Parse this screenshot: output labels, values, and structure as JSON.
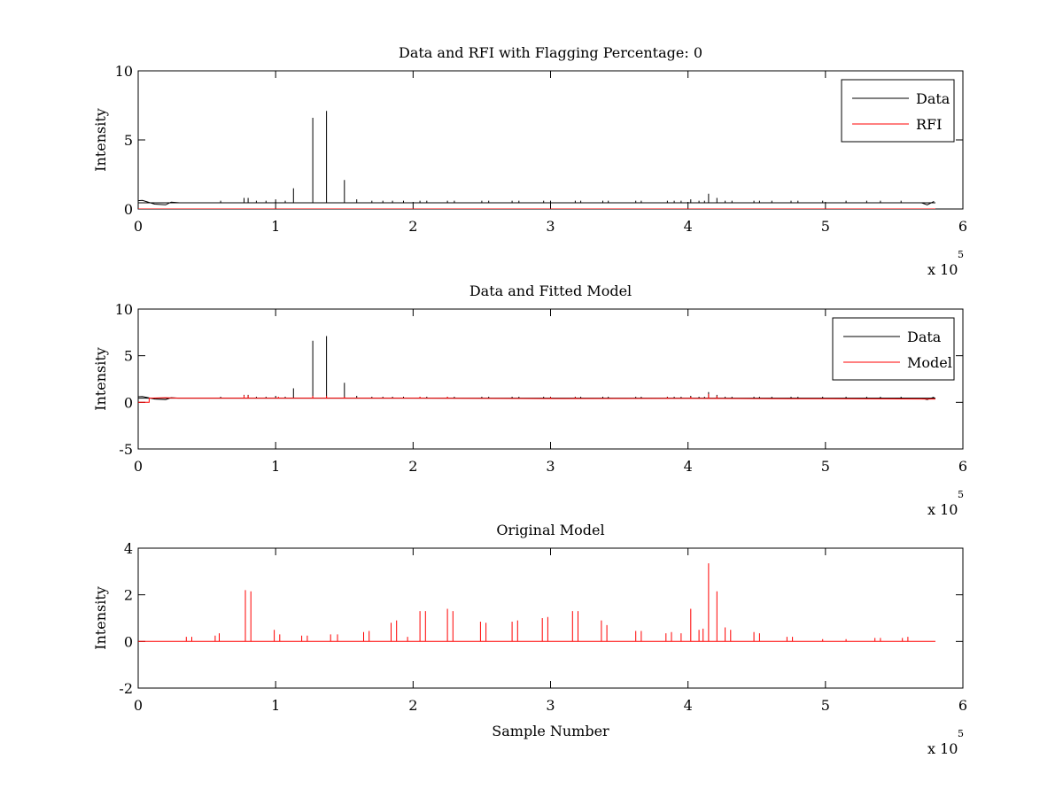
{
  "chart_data": [
    {
      "type": "line",
      "title": "Data and RFI with Flagging Percentage: 0",
      "xlabel": "",
      "ylabel": "Intensity",
      "xlim": [
        0,
        600000
      ],
      "ylim": [
        0,
        10
      ],
      "xticks": [
        0,
        1,
        2,
        3,
        4,
        5,
        6
      ],
      "yticks": [
        0,
        5,
        10
      ],
      "x_multiplier": {
        "base": "x 10",
        "exponent": "5"
      },
      "legend": {
        "position": "top-right",
        "entries": [
          "Data",
          "RFI"
        ]
      },
      "series": [
        {
          "name": "Data",
          "color": "#000000",
          "baseline": 0.45,
          "x_range": [
            0,
            580000
          ],
          "dips": [
            [
              0,
              0.6
            ],
            [
              3000,
              0.62
            ],
            [
              12000,
              0.35
            ],
            [
              20000,
              0.3
            ],
            [
              24000,
              0.5
            ],
            [
              30000,
              0.45
            ],
            [
              570000,
              0.45
            ],
            [
              574000,
              0.3
            ],
            [
              579000,
              0.55
            ]
          ],
          "spikes": [
            [
              60000,
              0.6
            ],
            [
              77000,
              0.8
            ],
            [
              80000,
              0.8
            ],
            [
              86000,
              0.6
            ],
            [
              93000,
              0.6
            ],
            [
              100000,
              0.7
            ],
            [
              107000,
              0.6
            ],
            [
              113000,
              1.5
            ],
            [
              127000,
              6.6
            ],
            [
              137000,
              7.1
            ],
            [
              150000,
              2.1
            ],
            [
              159000,
              0.7
            ],
            [
              170000,
              0.6
            ],
            [
              178000,
              0.6
            ],
            [
              185000,
              0.6
            ],
            [
              193000,
              0.6
            ],
            [
              205000,
              0.6
            ],
            [
              210000,
              0.6
            ],
            [
              225000,
              0.6
            ],
            [
              230000,
              0.6
            ],
            [
              250000,
              0.6
            ],
            [
              255000,
              0.6
            ],
            [
              272000,
              0.6
            ],
            [
              277000,
              0.6
            ],
            [
              295000,
              0.6
            ],
            [
              300000,
              0.6
            ],
            [
              318000,
              0.6
            ],
            [
              322000,
              0.6
            ],
            [
              338000,
              0.6
            ],
            [
              342000,
              0.6
            ],
            [
              362000,
              0.6
            ],
            [
              366000,
              0.6
            ],
            [
              385000,
              0.6
            ],
            [
              390000,
              0.6
            ],
            [
              395000,
              0.6
            ],
            [
              402000,
              0.7
            ],
            [
              408000,
              0.6
            ],
            [
              412000,
              0.6
            ],
            [
              415000,
              1.1
            ],
            [
              421000,
              0.8
            ],
            [
              427000,
              0.6
            ],
            [
              432000,
              0.6
            ],
            [
              448000,
              0.6
            ],
            [
              452000,
              0.6
            ],
            [
              461000,
              0.6
            ],
            [
              475000,
              0.6
            ],
            [
              480000,
              0.6
            ],
            [
              498000,
              0.6
            ],
            [
              515000,
              0.6
            ],
            [
              530000,
              0.6
            ],
            [
              540000,
              0.6
            ],
            [
              555000,
              0.6
            ]
          ]
        },
        {
          "name": "RFI",
          "color": "#ff0000",
          "values_summary": "all zero"
        }
      ]
    },
    {
      "type": "line",
      "title": "Data and Fitted Model",
      "xlabel": "",
      "ylabel": "Intensity",
      "xlim": [
        0,
        600000
      ],
      "ylim": [
        -5,
        10
      ],
      "xticks": [
        0,
        1,
        2,
        3,
        4,
        5,
        6
      ],
      "yticks": [
        -5,
        0,
        5,
        10
      ],
      "x_multiplier": {
        "base": "x 10",
        "exponent": "5"
      },
      "legend": {
        "position": "top-right",
        "entries": [
          "Data",
          "Model"
        ]
      },
      "series": [
        {
          "name": "Data",
          "color": "#000000",
          "baseline": 0.45,
          "x_range": [
            0,
            580000
          ],
          "dips": [
            [
              0,
              0.6
            ],
            [
              3000,
              0.62
            ],
            [
              12000,
              0.35
            ],
            [
              20000,
              0.3
            ],
            [
              24000,
              0.5
            ],
            [
              30000,
              0.45
            ],
            [
              570000,
              0.45
            ],
            [
              574000,
              0.3
            ],
            [
              579000,
              0.55
            ]
          ],
          "spikes": [
            [
              60000,
              0.6
            ],
            [
              77000,
              0.8
            ],
            [
              80000,
              0.8
            ],
            [
              86000,
              0.6
            ],
            [
              93000,
              0.6
            ],
            [
              100000,
              0.7
            ],
            [
              107000,
              0.6
            ],
            [
              113000,
              1.5
            ],
            [
              127000,
              6.6
            ],
            [
              137000,
              7.1
            ],
            [
              150000,
              2.1
            ],
            [
              159000,
              0.7
            ],
            [
              170000,
              0.6
            ],
            [
              178000,
              0.6
            ],
            [
              185000,
              0.6
            ],
            [
              193000,
              0.6
            ],
            [
              205000,
              0.6
            ],
            [
              210000,
              0.6
            ],
            [
              225000,
              0.6
            ],
            [
              230000,
              0.6
            ],
            [
              250000,
              0.6
            ],
            [
              255000,
              0.6
            ],
            [
              272000,
              0.6
            ],
            [
              277000,
              0.6
            ],
            [
              295000,
              0.6
            ],
            [
              300000,
              0.6
            ],
            [
              318000,
              0.6
            ],
            [
              322000,
              0.6
            ],
            [
              338000,
              0.6
            ],
            [
              342000,
              0.6
            ],
            [
              362000,
              0.6
            ],
            [
              366000,
              0.6
            ],
            [
              385000,
              0.6
            ],
            [
              390000,
              0.6
            ],
            [
              395000,
              0.6
            ],
            [
              402000,
              0.7
            ],
            [
              408000,
              0.6
            ],
            [
              412000,
              0.6
            ],
            [
              415000,
              1.1
            ],
            [
              421000,
              0.8
            ],
            [
              427000,
              0.6
            ],
            [
              432000,
              0.6
            ],
            [
              448000,
              0.6
            ],
            [
              452000,
              0.6
            ],
            [
              461000,
              0.6
            ],
            [
              475000,
              0.6
            ],
            [
              480000,
              0.6
            ],
            [
              498000,
              0.6
            ],
            [
              515000,
              0.6
            ],
            [
              530000,
              0.6
            ],
            [
              540000,
              0.6
            ],
            [
              555000,
              0.6
            ]
          ]
        },
        {
          "name": "Model",
          "color": "#ff0000",
          "points": [
            [
              0,
              0.0
            ],
            [
              8000,
              0.0
            ],
            [
              8000,
              0.45
            ],
            [
              20000,
              0.5
            ],
            [
              30000,
              0.45
            ],
            [
              100000,
              0.45
            ],
            [
              200000,
              0.45
            ],
            [
              300000,
              0.4
            ],
            [
              400000,
              0.42
            ],
            [
              500000,
              0.38
            ],
            [
              580000,
              0.35
            ]
          ],
          "spikes": [
            [
              77000,
              0.75
            ],
            [
              80000,
              0.75
            ],
            [
              102000,
              0.6
            ],
            [
              127000,
              0.7
            ],
            [
              137000,
              0.7
            ],
            [
              150000,
              0.6
            ],
            [
              205000,
              0.6
            ],
            [
              225000,
              0.6
            ],
            [
              300000,
              0.55
            ],
            [
              318000,
              0.55
            ],
            [
              385000,
              0.55
            ],
            [
              402000,
              0.6
            ],
            [
              415000,
              0.9
            ],
            [
              421000,
              0.7
            ]
          ]
        }
      ]
    },
    {
      "type": "line",
      "title": "Original Model",
      "xlabel": "Sample Number",
      "ylabel": "Intensity",
      "xlim": [
        0,
        600000
      ],
      "ylim": [
        -2,
        4
      ],
      "xticks": [
        0,
        1,
        2,
        3,
        4,
        5,
        6
      ],
      "yticks": [
        -2,
        0,
        2,
        4
      ],
      "x_multiplier": {
        "base": "x 10",
        "exponent": "5"
      },
      "legend": null,
      "series": [
        {
          "color": "#ff0000",
          "baseline": 0,
          "x_range": [
            0,
            580000
          ],
          "spikes": [
            [
              35000,
              0.2
            ],
            [
              39000,
              0.2
            ],
            [
              56000,
              0.25
            ],
            [
              59000,
              0.35
            ],
            [
              78000,
              2.2
            ],
            [
              82000,
              2.15
            ],
            [
              99000,
              0.5
            ],
            [
              103000,
              0.3
            ],
            [
              119000,
              0.25
            ],
            [
              123000,
              0.25
            ],
            [
              140000,
              0.3
            ],
            [
              145000,
              0.3
            ],
            [
              164000,
              0.4
            ],
            [
              168000,
              0.45
            ],
            [
              184000,
              0.8
            ],
            [
              188000,
              0.9
            ],
            [
              196000,
              0.2
            ],
            [
              205000,
              1.3
            ],
            [
              209000,
              1.3
            ],
            [
              225000,
              1.4
            ],
            [
              229000,
              1.3
            ],
            [
              249000,
              0.85
            ],
            [
              253000,
              0.8
            ],
            [
              272000,
              0.85
            ],
            [
              276000,
              0.9
            ],
            [
              294000,
              1.0
            ],
            [
              298000,
              1.05
            ],
            [
              316000,
              1.3
            ],
            [
              320000,
              1.3
            ],
            [
              337000,
              0.9
            ],
            [
              341000,
              0.7
            ],
            [
              362000,
              0.45
            ],
            [
              366000,
              0.45
            ],
            [
              384000,
              0.35
            ],
            [
              388000,
              0.4
            ],
            [
              395000,
              0.35
            ],
            [
              402000,
              1.4
            ],
            [
              408000,
              0.5
            ],
            [
              411000,
              0.55
            ],
            [
              415000,
              3.35
            ],
            [
              421000,
              2.15
            ],
            [
              427000,
              0.6
            ],
            [
              431000,
              0.5
            ],
            [
              448000,
              0.4
            ],
            [
              452000,
              0.35
            ],
            [
              472000,
              0.2
            ],
            [
              476000,
              0.2
            ],
            [
              498000,
              0.1
            ],
            [
              515000,
              0.1
            ],
            [
              536000,
              0.15
            ],
            [
              540000,
              0.15
            ],
            [
              556000,
              0.15
            ],
            [
              560000,
              0.2
            ]
          ]
        }
      ]
    }
  ]
}
